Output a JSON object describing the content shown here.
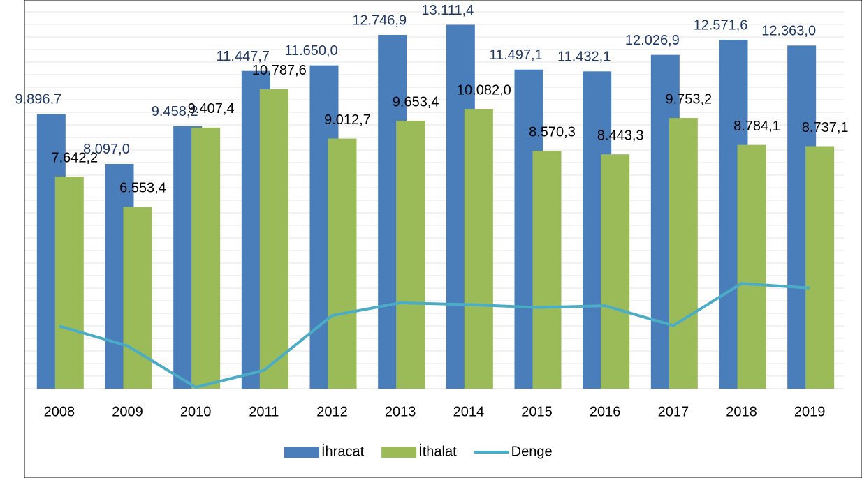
{
  "chart_data": {
    "type": "bar",
    "categories": [
      "2008",
      "2009",
      "2010",
      "2011",
      "2012",
      "2013",
      "2014",
      "2015",
      "2016",
      "2017",
      "2018",
      "2019"
    ],
    "ylim": [
      0,
      13200
    ],
    "series": [
      {
        "name": "İhracat",
        "type": "bar",
        "color": "#4a7ebb",
        "values": [
          9896.7,
          8097.0,
          9458.2,
          11447.7,
          11650.0,
          12746.9,
          13111.4,
          11497.1,
          11432.1,
          12026.9,
          12571.6,
          12363.0
        ],
        "value_labels": [
          "9.896,7",
          "8.097,0",
          "9.458,2",
          "11.447,7",
          "11.650,0",
          "12.746,9",
          "13.111,4",
          "11.497,1",
          "11.432,1",
          "12.026,9",
          "12.571,6",
          "12.363,0"
        ]
      },
      {
        "name": "İthalat",
        "type": "bar",
        "color": "#9bbb59",
        "values": [
          7642.2,
          6553.4,
          9407.4,
          10787.6,
          9012.7,
          9653.4,
          10082.0,
          8570.3,
          8443.3,
          9753.2,
          8784.1,
          8737.1
        ],
        "value_labels": [
          "7.642,2",
          "6.553,4",
          "9.407,4",
          "10.787,6",
          "9.012,7",
          "9.653,4",
          "10.082,0",
          "8.570,3",
          "8.443,3",
          "9.753,2",
          "8.784,1",
          "8.737,1"
        ]
      },
      {
        "name": "Denge",
        "type": "line",
        "color": "#4bacc6",
        "values": [
          2254.5,
          1543.6,
          50.8,
          660.1,
          2637.3,
          3093.5,
          3029.4,
          2926.8,
          2988.8,
          2273.7,
          3787.5,
          3625.9
        ]
      }
    ],
    "grid": true,
    "legend": "bottom"
  }
}
